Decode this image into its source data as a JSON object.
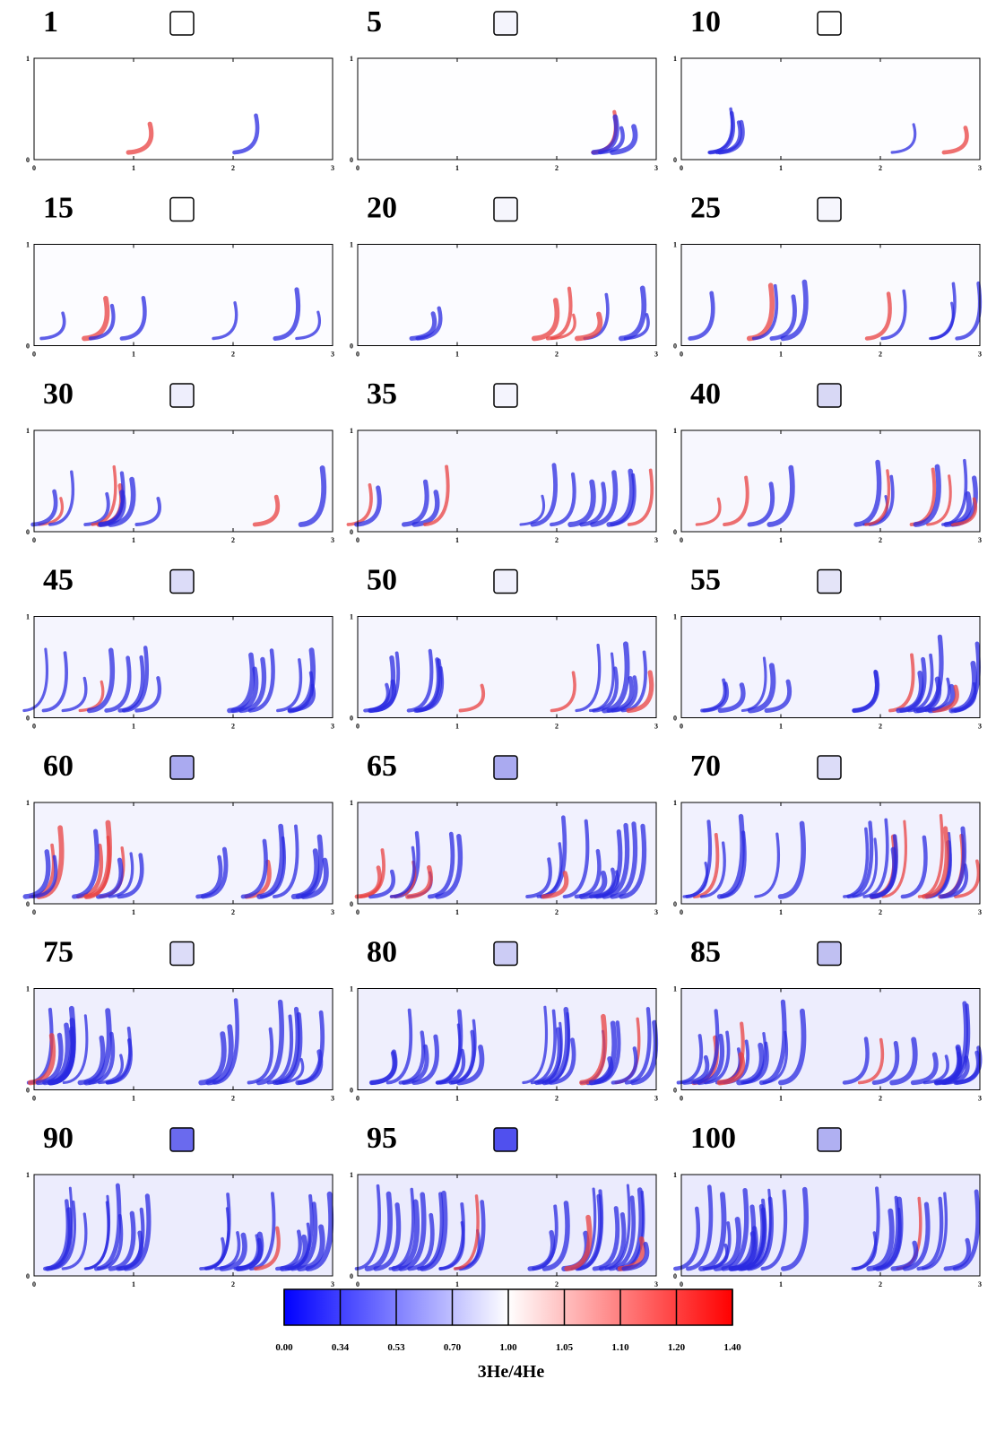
{
  "panels": [
    {
      "label": "1",
      "swatch": "#ffffff"
    },
    {
      "label": "5",
      "swatch": "#f4f4fc"
    },
    {
      "label": "10",
      "swatch": "#ffffff"
    },
    {
      "label": "15",
      "swatch": "#ffffff"
    },
    {
      "label": "20",
      "swatch": "#f6f6fd"
    },
    {
      "label": "25",
      "swatch": "#f6f6fd"
    },
    {
      "label": "30",
      "swatch": "#eeeefc"
    },
    {
      "label": "35",
      "swatch": "#f4f4fd"
    },
    {
      "label": "40",
      "swatch": "#d8d8f5"
    },
    {
      "label": "45",
      "swatch": "#dcdcf8"
    },
    {
      "label": "50",
      "swatch": "#f0f0fc"
    },
    {
      "label": "55",
      "swatch": "#e4e4f8"
    },
    {
      "label": "60",
      "swatch": "#aaaaf0"
    },
    {
      "label": "65",
      "swatch": "#aaaaf0"
    },
    {
      "label": "70",
      "swatch": "#dcdcf8"
    },
    {
      "label": "75",
      "swatch": "#dcdcf8"
    },
    {
      "label": "80",
      "swatch": "#ccccf5"
    },
    {
      "label": "85",
      "swatch": "#c0c0f2"
    },
    {
      "label": "90",
      "swatch": "#6a6aee"
    },
    {
      "label": "95",
      "swatch": "#5050ee"
    },
    {
      "label": "100",
      "swatch": "#b0b0f2"
    }
  ],
  "axes": {
    "xlim": [
      0,
      3
    ],
    "xticks": [
      0,
      1,
      2,
      3
    ],
    "ylim": [
      0,
      1
    ],
    "yticks": [
      0,
      1
    ]
  },
  "colorbar": {
    "label": "3He/4He",
    "colors": [
      "#0000ff",
      "#ffffff",
      "#ff0000"
    ],
    "ticks": [
      {
        "value": 0,
        "label": "0.00"
      },
      {
        "value": 0.34,
        "label": "0.34"
      },
      {
        "value": 0.53,
        "label": "0.53"
      },
      {
        "value": 0.7,
        "label": "0.70"
      },
      {
        "value": 1,
        "label": "1.00"
      },
      {
        "value": 1.05,
        "label": "1.05"
      },
      {
        "value": 1.1,
        "label": "1.10"
      },
      {
        "value": 1.2,
        "label": "1.20"
      },
      {
        "value": 1.4,
        "label": "1.40"
      }
    ]
  }
}
